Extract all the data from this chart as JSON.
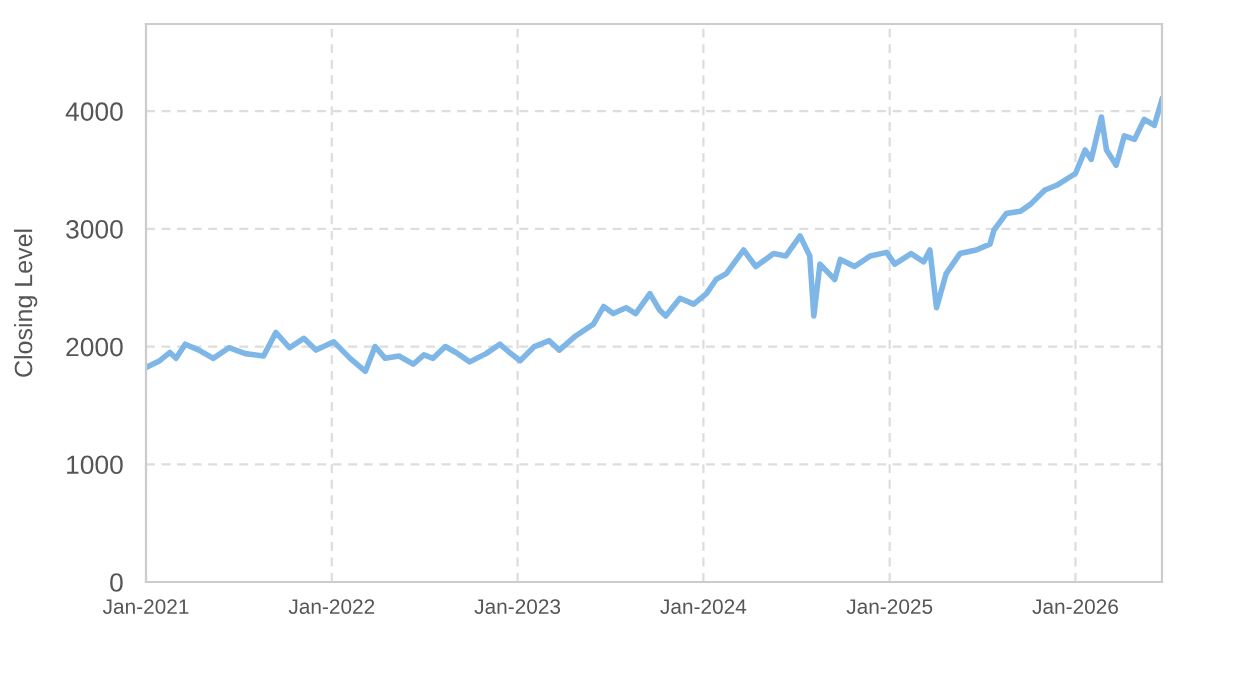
{
  "chart_data": {
    "type": "line",
    "ylabel": "Closing Level",
    "xlim": [
      "2021-01-01",
      "2026-06-20"
    ],
    "ylim": [
      0,
      4740
    ],
    "xticks": [
      {
        "value": "2021-01-01",
        "label": "Jan-2021"
      },
      {
        "value": "2022-01-01",
        "label": "Jan-2022"
      },
      {
        "value": "2023-01-01",
        "label": "Jan-2023"
      },
      {
        "value": "2024-01-01",
        "label": "Jan-2024"
      },
      {
        "value": "2025-01-01",
        "label": "Jan-2025"
      },
      {
        "value": "2026-01-01",
        "label": "Jan-2026"
      }
    ],
    "yticks": [
      0,
      1000,
      2000,
      3000,
      4000
    ],
    "grid": true,
    "marker": "none",
    "line_style": "solid",
    "series": [
      {
        "color": "#7eb6e8",
        "x": [
          "2021-01-05",
          "2021-01-28",
          "2021-02-17",
          "2021-03-01",
          "2021-03-19",
          "2021-04-15",
          "2021-05-13",
          "2021-06-13",
          "2021-07-15",
          "2021-08-20",
          "2021-09-13",
          "2021-10-10",
          "2021-11-07",
          "2021-12-01",
          "2022-01-05",
          "2022-02-06",
          "2022-03-08",
          "2022-03-27",
          "2022-04-16",
          "2022-05-13",
          "2022-06-10",
          "2022-07-01",
          "2022-07-19",
          "2022-08-12",
          "2022-09-02",
          "2022-09-29",
          "2022-10-31",
          "2022-11-27",
          "2022-12-16",
          "2023-01-06",
          "2023-02-03",
          "2023-03-04",
          "2023-03-24",
          "2023-04-25",
          "2023-05-30",
          "2023-06-19",
          "2023-07-08",
          "2023-08-02",
          "2023-08-21",
          "2023-09-18",
          "2023-10-07",
          "2023-10-19",
          "2023-11-16",
          "2023-12-13",
          "2024-01-07",
          "2024-01-26",
          "2024-02-15",
          "2024-03-20",
          "2024-04-13",
          "2024-05-18",
          "2024-06-11",
          "2024-07-09",
          "2024-07-28",
          "2024-08-05",
          "2024-08-17",
          "2024-09-15",
          "2024-09-26",
          "2024-10-24",
          "2024-11-24",
          "2024-12-26",
          "2025-01-11",
          "2025-02-12",
          "2025-03-09",
          "2025-03-21",
          "2025-04-03",
          "2025-04-22",
          "2025-05-19",
          "2025-06-20",
          "2025-07-17",
          "2025-07-25",
          "2025-08-18",
          "2025-09-15",
          "2025-10-05",
          "2025-11-02",
          "2025-11-25",
          "2026-01-01",
          "2026-01-20",
          "2026-02-01",
          "2026-02-21",
          "2026-03-03",
          "2026-03-22",
          "2026-04-07",
          "2026-04-27",
          "2026-05-16",
          "2026-06-05",
          "2026-06-20"
        ],
        "values": [
          1830,
          1880,
          1950,
          1900,
          2020,
          1970,
          1900,
          1990,
          1940,
          1920,
          2120,
          1990,
          2070,
          1970,
          2040,
          1900,
          1790,
          2000,
          1900,
          1920,
          1850,
          1930,
          1900,
          2000,
          1950,
          1870,
          1940,
          2020,
          1950,
          1880,
          2000,
          2050,
          1970,
          2090,
          2190,
          2340,
          2280,
          2330,
          2280,
          2450,
          2310,
          2260,
          2410,
          2360,
          2450,
          2570,
          2620,
          2820,
          2680,
          2790,
          2770,
          2940,
          2770,
          2260,
          2700,
          2570,
          2740,
          2680,
          2770,
          2800,
          2700,
          2790,
          2720,
          2820,
          2330,
          2620,
          2790,
          2820,
          2870,
          2990,
          3130,
          3150,
          3210,
          3330,
          3370,
          3470,
          3670,
          3590,
          3950,
          3670,
          3540,
          3790,
          3760,
          3930,
          3880,
          4100
        ]
      }
    ]
  }
}
